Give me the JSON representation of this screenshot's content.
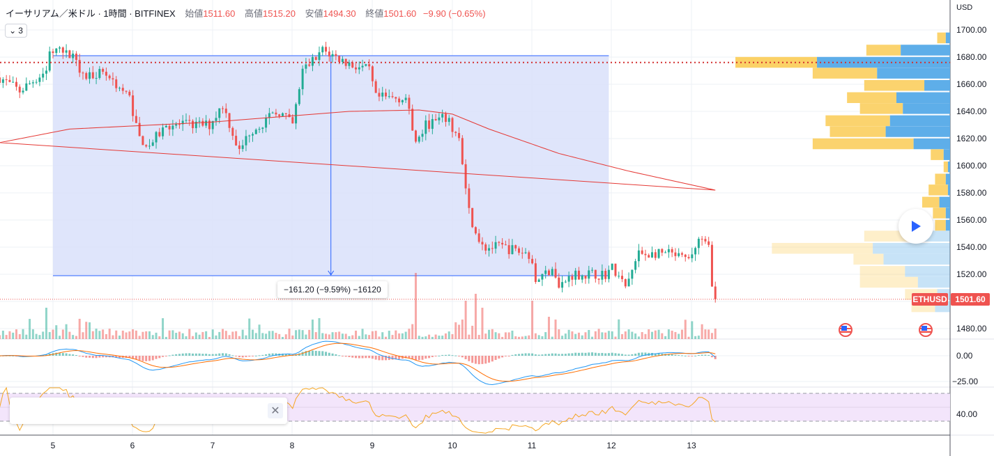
{
  "header": {
    "symbol_title": "イーサリアム／米ドル · 1時間 · BITFINEX",
    "open_label": "始値",
    "open": "1511.60",
    "high_label": "高値",
    "high": "1515.20",
    "low_label": "安値",
    "low": "1494.30",
    "close_label": "終値",
    "close": "1501.60",
    "change": "−9.90 (−0.65%)"
  },
  "indicators_toggle": {
    "icon": "chevron-down-icon",
    "count": "3"
  },
  "price_axis": {
    "currency": "USD",
    "labels": [
      "1700.00",
      "1680.00",
      "1660.00",
      "1640.00",
      "1620.00",
      "1600.00",
      "1580.00",
      "1560.00",
      "1540.00",
      "1520.00",
      "1480.00"
    ]
  },
  "macd_axis": {
    "labels": [
      "0.00",
      "−25.00"
    ]
  },
  "rsi_axis": {
    "labels": [
      "40.00"
    ]
  },
  "time_axis": {
    "labels": [
      "5",
      "6",
      "7",
      "8",
      "9",
      "10",
      "11",
      "12",
      "13"
    ]
  },
  "price_tag": {
    "symbol": "ETHUSD",
    "price": "1501.60"
  },
  "measure": {
    "label": "−161.20 (−9.59%) −16120"
  },
  "panel": {
    "close_icon": "close-icon"
  },
  "colors": {
    "up": "#22ab94",
    "down": "#ef5350",
    "ma": "#e53935",
    "range_fill": "#dbe2fb",
    "range_line": "#2962ff",
    "vp_buy": "#5eaee9",
    "vp_sell": "#fbd166",
    "rsi_band": "#f3e5fb",
    "macd": "#2196f3",
    "signal": "#ff6d00"
  },
  "chart_data": {
    "type": "candlestick",
    "title": "ETHUSD 1h BITFINEX",
    "x_unit": "hours since day 5 00:00",
    "xlim": [
      -16,
      270
    ],
    "ylim": [
      1470,
      1710
    ],
    "price_path": [
      [
        -16,
        1665
      ],
      [
        -10,
        1655
      ],
      [
        -2,
        1670
      ],
      [
        -1,
        1685
      ],
      [
        7,
        1680
      ],
      [
        9,
        1665
      ],
      [
        15,
        1670
      ],
      [
        23,
        1650
      ],
      [
        26,
        1620
      ],
      [
        29,
        1615
      ],
      [
        34,
        1630
      ],
      [
        47,
        1630
      ],
      [
        51,
        1645
      ],
      [
        56,
        1610
      ],
      [
        59,
        1625
      ],
      [
        68,
        1640
      ],
      [
        72,
        1630
      ],
      [
        75,
        1670
      ],
      [
        81,
        1685
      ],
      [
        89,
        1675
      ],
      [
        95,
        1670
      ],
      [
        97,
        1650
      ],
      [
        106,
        1650
      ],
      [
        109,
        1615
      ],
      [
        112,
        1630
      ],
      [
        118,
        1635
      ],
      [
        122,
        1620
      ],
      [
        124,
        1580
      ],
      [
        126,
        1555
      ],
      [
        129,
        1540
      ],
      [
        135,
        1540
      ],
      [
        143,
        1535
      ],
      [
        145,
        1515
      ],
      [
        150,
        1525
      ],
      [
        152,
        1510
      ],
      [
        156,
        1520
      ],
      [
        166,
        1520
      ],
      [
        168,
        1525
      ],
      [
        172,
        1510
      ],
      [
        176,
        1535
      ],
      [
        185,
        1535
      ],
      [
        191,
        1530
      ],
      [
        194,
        1545
      ],
      [
        197,
        1540
      ],
      [
        198,
        1515
      ],
      [
        199,
        1501.6
      ]
    ],
    "ma200": [
      [
        -16,
        1617
      ],
      [
        5,
        1627
      ],
      [
        47,
        1632
      ],
      [
        89,
        1640
      ],
      [
        110,
        1641
      ],
      [
        120,
        1638
      ],
      [
        131,
        1627
      ],
      [
        152,
        1609
      ],
      [
        173,
        1596
      ],
      [
        199,
        1582
      ]
    ],
    "volume_spikes": [
      [
        -2,
        45
      ],
      [
        80,
        30
      ],
      [
        109,
        95
      ],
      [
        124,
        55
      ],
      [
        127,
        65
      ],
      [
        129,
        45
      ],
      [
        144,
        55
      ],
      [
        149,
        32
      ],
      [
        151,
        28
      ],
      [
        199,
        15
      ]
    ],
    "horizontal_line": 1676,
    "range": {
      "from_hour": 0,
      "to_hour": 167,
      "high": 1681,
      "low": 1519,
      "change": -161.2,
      "change_pct": -9.59
    },
    "volume_profile": [
      [
        1694,
        6,
        2
      ],
      [
        1685,
        39,
        23
      ],
      [
        1676,
        100,
        62
      ],
      [
        1668,
        64,
        34
      ],
      [
        1659,
        40,
        12
      ],
      [
        1650,
        48,
        25
      ],
      [
        1642,
        42,
        22
      ],
      [
        1633,
        58,
        28
      ],
      [
        1625,
        56,
        30
      ],
      [
        1616,
        64,
        17
      ],
      [
        1608,
        9,
        3
      ],
      [
        1599,
        3,
        1
      ],
      [
        1590,
        7,
        2
      ],
      [
        1582,
        10,
        1
      ],
      [
        1573,
        13,
        5
      ],
      [
        1565,
        8,
        2
      ],
      [
        1556,
        7,
        2
      ],
      [
        1548,
        40,
        17
      ],
      [
        1539,
        83,
        36
      ],
      [
        1531,
        45,
        31
      ],
      [
        1522,
        42,
        21
      ],
      [
        1514,
        42,
        15
      ],
      [
        1505,
        21,
        6
      ],
      [
        1496,
        18,
        7
      ]
    ],
    "value_area_low": 1552
  }
}
